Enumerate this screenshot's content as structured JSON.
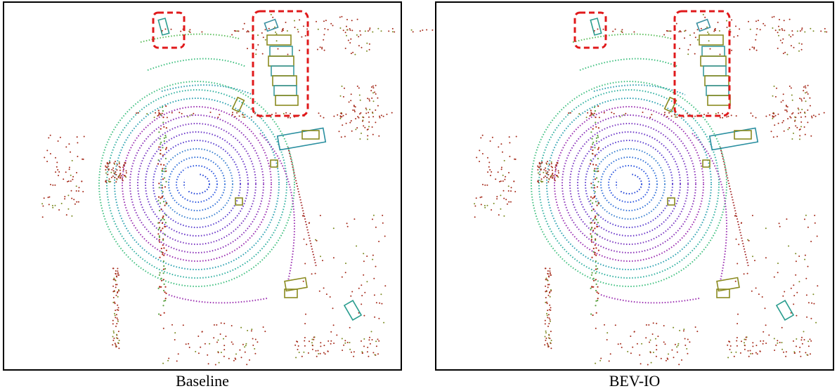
{
  "panels": [
    {
      "caption": "Baseline"
    },
    {
      "caption": "BEV-IO"
    }
  ]
}
